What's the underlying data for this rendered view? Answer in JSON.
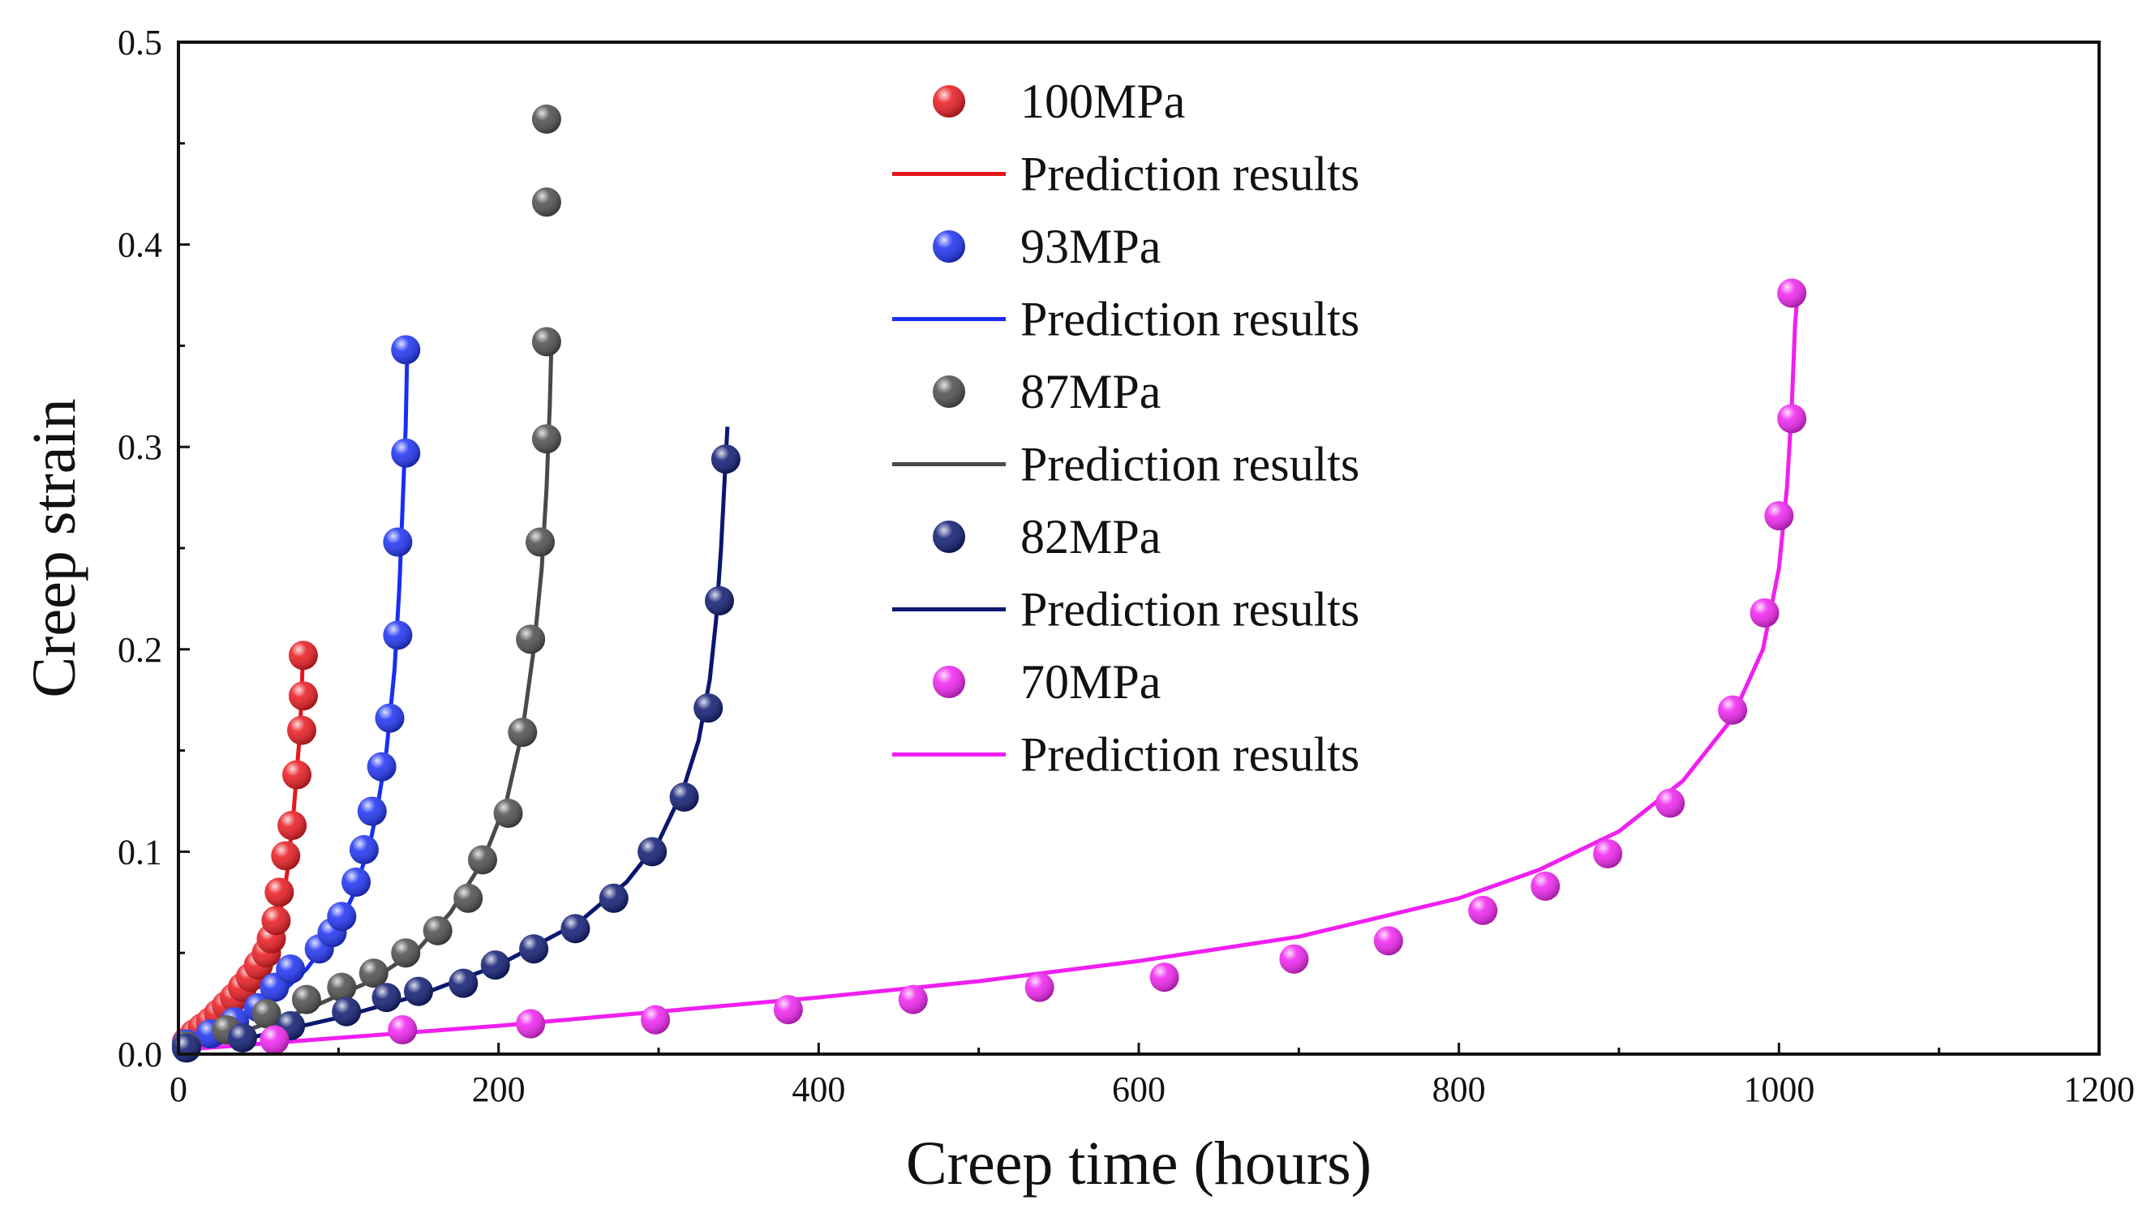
{
  "chart_data": {
    "type": "scatter",
    "xlabel": "Creep time (hours)",
    "ylabel": "Creep strain",
    "xlim": [
      0,
      1200
    ],
    "ylim": [
      0,
      0.5
    ],
    "xticks": [
      0,
      200,
      400,
      600,
      800,
      1000,
      1200
    ],
    "yticks": [
      0.0,
      0.1,
      0.2,
      0.3,
      0.4,
      0.5
    ],
    "xtick_labels": [
      "0",
      "200",
      "400",
      "600",
      "800",
      "1000",
      "1200"
    ],
    "ytick_labels": [
      "0.0",
      "0.1",
      "0.2",
      "0.3",
      "0.4",
      "0.5"
    ],
    "grid": false,
    "legend_position": "top-center",
    "series": [
      {
        "name": "100MPa",
        "fit_label": "Prediction results",
        "color": "#e8151b",
        "points": [
          [
            5,
            0.006
          ],
          [
            10,
            0.01
          ],
          [
            15,
            0.013
          ],
          [
            20,
            0.016
          ],
          [
            25,
            0.02
          ],
          [
            30,
            0.024
          ],
          [
            35,
            0.028
          ],
          [
            40,
            0.033
          ],
          [
            45,
            0.038
          ],
          [
            50,
            0.044
          ],
          [
            55,
            0.05
          ],
          [
            58,
            0.057
          ],
          [
            61,
            0.066
          ],
          [
            63,
            0.08
          ],
          [
            67,
            0.098
          ],
          [
            71,
            0.113
          ],
          [
            74,
            0.138
          ],
          [
            77,
            0.16
          ],
          [
            78,
            0.177
          ],
          [
            78,
            0.197
          ]
        ],
        "fit": [
          [
            0,
            0.002
          ],
          [
            10,
            0.009
          ],
          [
            20,
            0.016
          ],
          [
            30,
            0.024
          ],
          [
            40,
            0.032
          ],
          [
            50,
            0.043
          ],
          [
            55,
            0.05
          ],
          [
            60,
            0.06
          ],
          [
            65,
            0.075
          ],
          [
            68,
            0.09
          ],
          [
            70,
            0.105
          ],
          [
            72,
            0.12
          ],
          [
            74,
            0.14
          ],
          [
            76,
            0.16
          ],
          [
            77,
            0.18
          ],
          [
            78,
            0.2
          ]
        ]
      },
      {
        "name": "93MPa",
        "fit_label": "Prediction results",
        "color": "#1a2ef2",
        "points": [
          [
            5,
            0.005
          ],
          [
            20,
            0.01
          ],
          [
            35,
            0.016
          ],
          [
            50,
            0.023
          ],
          [
            60,
            0.033
          ],
          [
            70,
            0.042
          ],
          [
            88,
            0.052
          ],
          [
            96,
            0.06
          ],
          [
            102,
            0.068
          ],
          [
            111,
            0.085
          ],
          [
            116,
            0.101
          ],
          [
            121,
            0.12
          ],
          [
            127,
            0.142
          ],
          [
            132,
            0.166
          ],
          [
            137,
            0.207
          ],
          [
            137,
            0.253
          ],
          [
            142,
            0.297
          ],
          [
            142,
            0.348
          ]
        ],
        "fit": [
          [
            0,
            0.002
          ],
          [
            20,
            0.009
          ],
          [
            40,
            0.017
          ],
          [
            60,
            0.027
          ],
          [
            80,
            0.042
          ],
          [
            100,
            0.063
          ],
          [
            110,
            0.08
          ],
          [
            120,
            0.105
          ],
          [
            125,
            0.125
          ],
          [
            130,
            0.15
          ],
          [
            135,
            0.19
          ],
          [
            138,
            0.23
          ],
          [
            140,
            0.27
          ],
          [
            142,
            0.31
          ],
          [
            143,
            0.35
          ]
        ]
      },
      {
        "name": "87MPa",
        "fit_label": "Prediction results",
        "color": "#4a4a4a",
        "points": [
          [
            5,
            0.004
          ],
          [
            30,
            0.012
          ],
          [
            55,
            0.02
          ],
          [
            80,
            0.027
          ],
          [
            102,
            0.033
          ],
          [
            122,
            0.04
          ],
          [
            142,
            0.05
          ],
          [
            162,
            0.061
          ],
          [
            181,
            0.077
          ],
          [
            190,
            0.096
          ],
          [
            206,
            0.119
          ],
          [
            215,
            0.159
          ],
          [
            220,
            0.205
          ],
          [
            226,
            0.253
          ],
          [
            230,
            0.304
          ],
          [
            230,
            0.352
          ],
          [
            230,
            0.421
          ],
          [
            230,
            0.462
          ]
        ],
        "fit": [
          [
            0,
            0.002
          ],
          [
            40,
            0.011
          ],
          [
            80,
            0.022
          ],
          [
            120,
            0.036
          ],
          [
            150,
            0.052
          ],
          [
            170,
            0.07
          ],
          [
            190,
            0.095
          ],
          [
            205,
            0.125
          ],
          [
            215,
            0.16
          ],
          [
            222,
            0.2
          ],
          [
            227,
            0.24
          ],
          [
            230,
            0.28
          ],
          [
            232,
            0.32
          ],
          [
            233,
            0.35
          ]
        ]
      },
      {
        "name": "82MPa",
        "fit_label": "Prediction results",
        "color": "#0a1770",
        "points": [
          [
            5,
            0.003
          ],
          [
            40,
            0.008
          ],
          [
            70,
            0.014
          ],
          [
            105,
            0.021
          ],
          [
            130,
            0.028
          ],
          [
            150,
            0.031
          ],
          [
            178,
            0.035
          ],
          [
            198,
            0.044
          ],
          [
            222,
            0.052
          ],
          [
            248,
            0.062
          ],
          [
            272,
            0.077
          ],
          [
            296,
            0.1
          ],
          [
            316,
            0.127
          ],
          [
            331,
            0.171
          ],
          [
            338,
            0.224
          ],
          [
            342,
            0.294
          ]
        ],
        "fit": [
          [
            0,
            0.002
          ],
          [
            50,
            0.009
          ],
          [
            100,
            0.018
          ],
          [
            150,
            0.029
          ],
          [
            200,
            0.044
          ],
          [
            250,
            0.065
          ],
          [
            280,
            0.085
          ],
          [
            300,
            0.105
          ],
          [
            315,
            0.13
          ],
          [
            325,
            0.155
          ],
          [
            332,
            0.185
          ],
          [
            336,
            0.215
          ],
          [
            339,
            0.25
          ],
          [
            341,
            0.28
          ],
          [
            343,
            0.31
          ]
        ]
      },
      {
        "name": "70MPa",
        "fit_label": "Prediction results",
        "color": "#f01ff0",
        "points": [
          [
            60,
            0.007
          ],
          [
            140,
            0.012
          ],
          [
            220,
            0.015
          ],
          [
            298,
            0.017
          ],
          [
            381,
            0.022
          ],
          [
            459,
            0.027
          ],
          [
            538,
            0.033
          ],
          [
            616,
            0.038
          ],
          [
            697,
            0.047
          ],
          [
            756,
            0.056
          ],
          [
            815,
            0.071
          ],
          [
            854,
            0.083
          ],
          [
            893,
            0.099
          ],
          [
            932,
            0.124
          ],
          [
            971,
            0.17
          ],
          [
            991,
            0.218
          ],
          [
            1000,
            0.266
          ],
          [
            1008,
            0.314
          ],
          [
            1008,
            0.376
          ]
        ],
        "fit": [
          [
            0,
            0.002
          ],
          [
            100,
            0.008
          ],
          [
            200,
            0.014
          ],
          [
            300,
            0.021
          ],
          [
            400,
            0.028
          ],
          [
            500,
            0.036
          ],
          [
            600,
            0.046
          ],
          [
            700,
            0.058
          ],
          [
            800,
            0.077
          ],
          [
            850,
            0.091
          ],
          [
            900,
            0.11
          ],
          [
            940,
            0.135
          ],
          [
            970,
            0.165
          ],
          [
            990,
            0.2
          ],
          [
            1000,
            0.24
          ],
          [
            1005,
            0.28
          ],
          [
            1008,
            0.32
          ],
          [
            1010,
            0.36
          ],
          [
            1012,
            0.38
          ]
        ]
      }
    ]
  }
}
